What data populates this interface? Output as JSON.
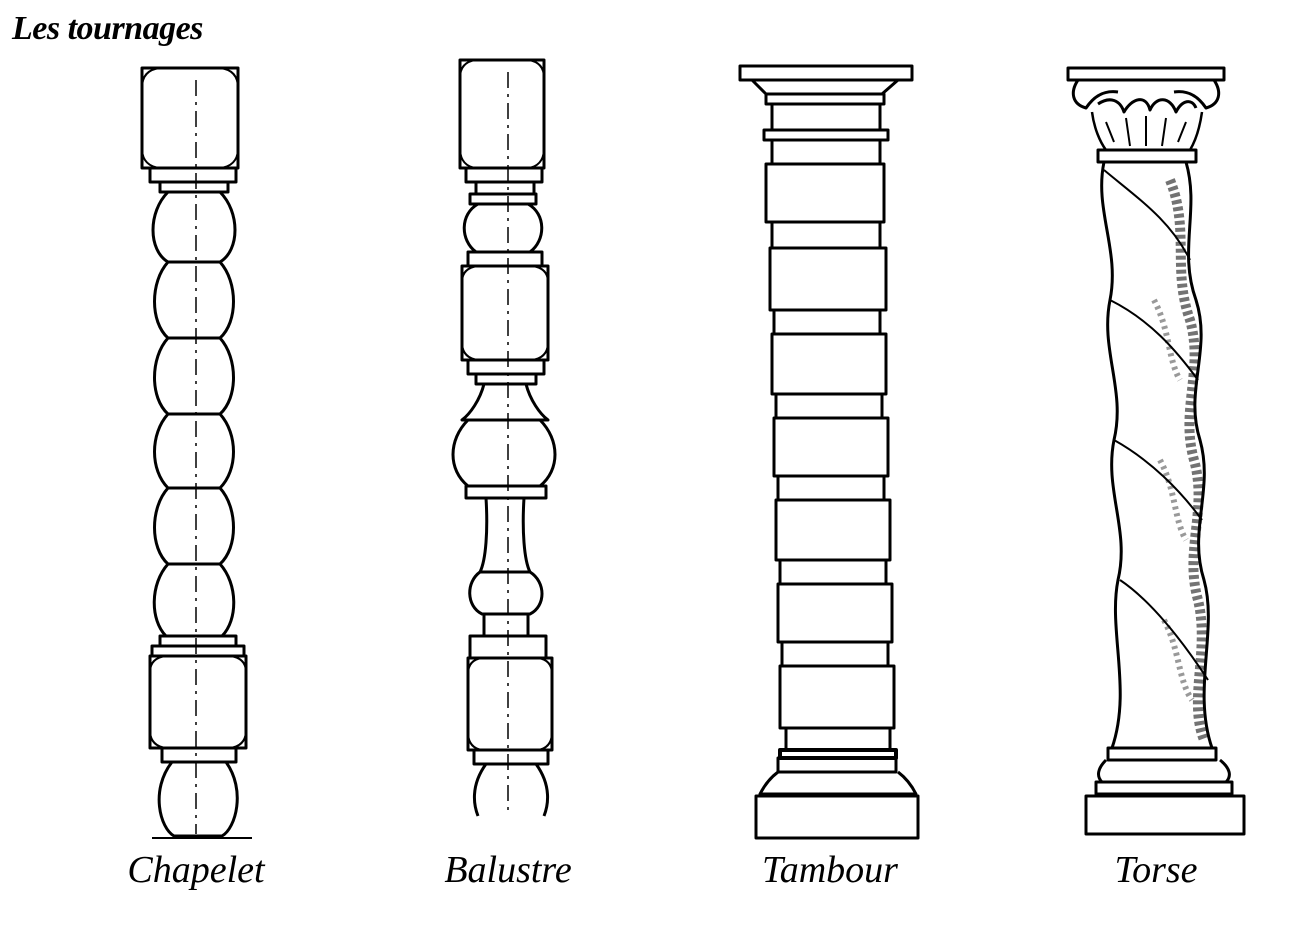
{
  "title": "Les tournages",
  "figures": [
    {
      "id": "chapelet",
      "label": "Chapelet"
    },
    {
      "id": "balustre",
      "label": "Balustre"
    },
    {
      "id": "tambour",
      "label": "Tambour"
    },
    {
      "id": "torse",
      "label": "Torse"
    }
  ],
  "colors": {
    "ink": "#000000",
    "paper": "#ffffff"
  }
}
